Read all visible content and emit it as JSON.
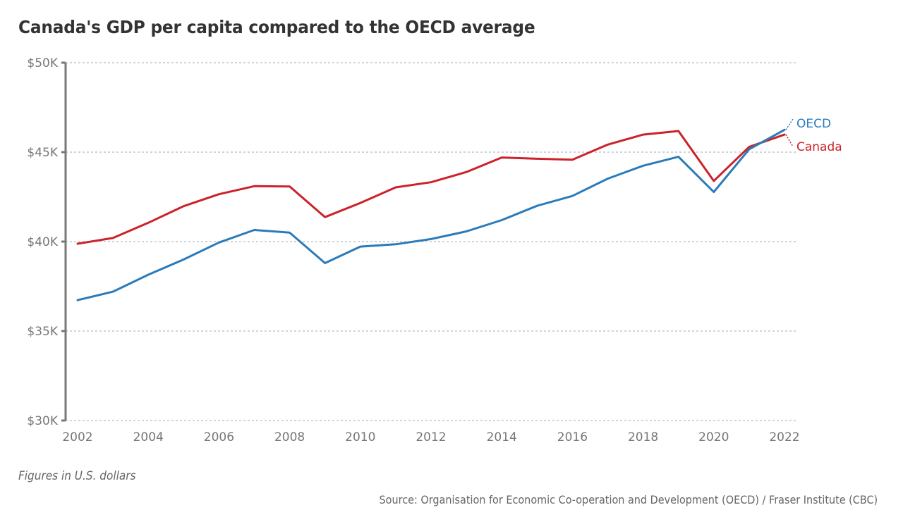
{
  "title": "Canada's GDP per capita compared to the OECD average",
  "note": "Figures in U.S. dollars",
  "source": "Source: Organisation for Economic Co-operation and Development (OECD) / Fraser Institute (CBC)",
  "chart_data": {
    "type": "line",
    "title": "Canada's GDP per capita compared to the OECD average",
    "xlabel": "",
    "ylabel": "",
    "x": [
      2002,
      2003,
      2004,
      2005,
      2006,
      2007,
      2008,
      2009,
      2010,
      2011,
      2012,
      2013,
      2014,
      2015,
      2016,
      2017,
      2018,
      2019,
      2020,
      2021,
      2022
    ],
    "xlim": [
      2002,
      2022
    ],
    "ylim": [
      30000,
      50000
    ],
    "grid": true,
    "x_ticks": [
      2002,
      2004,
      2006,
      2008,
      2010,
      2012,
      2014,
      2016,
      2018,
      2020,
      2022
    ],
    "x_tick_labels": [
      "2002",
      "2004",
      "2006",
      "2008",
      "2010",
      "2012",
      "2014",
      "2016",
      "2018",
      "2020",
      "2022"
    ],
    "y_ticks": [
      30000,
      35000,
      40000,
      45000,
      50000
    ],
    "y_tick_labels": [
      "$30K",
      "$35K",
      "$40K",
      "$45K",
      "$50K"
    ],
    "legend": "direct-labels-right",
    "series": [
      {
        "name": "OECD",
        "color": "#2b7bba",
        "values": [
          36730,
          37200,
          38150,
          39000,
          39950,
          40650,
          40500,
          38800,
          39720,
          39850,
          40140,
          40570,
          41200,
          42000,
          42550,
          43520,
          44240,
          44740,
          42770,
          45160,
          46250
        ]
      },
      {
        "name": "Canada",
        "color": "#cc2229",
        "values": [
          39880,
          40200,
          41050,
          41980,
          42650,
          43100,
          43080,
          41370,
          42160,
          43030,
          43320,
          43890,
          44700,
          44630,
          44580,
          45420,
          45980,
          46180,
          43390,
          45290,
          45980
        ]
      }
    ]
  }
}
